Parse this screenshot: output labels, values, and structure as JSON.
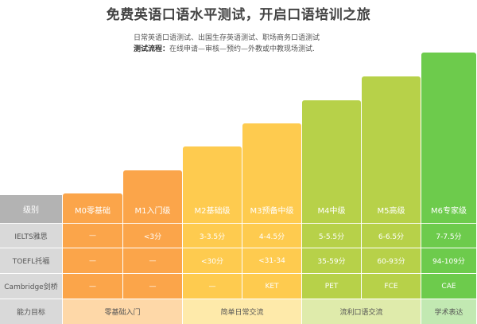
{
  "title": "免费英语口语水平测试，开启口语培训之旅",
  "subtitle1": "日常英语口语测试、出国生存英语测试、职场商务口语测试",
  "subtitle2_label": "测试流程：",
  "subtitle2_text": "在线申请—审核—预约—外教或中教现场测试.",
  "header_label": "级别",
  "levels": [
    {
      "name": "M0零基础",
      "color": "#fba54a",
      "cell_color": "#fed8a8"
    },
    {
      "name": "M1入门级",
      "color": "#fba54a",
      "cell_color": "#fed8a8"
    },
    {
      "name": "M2基础级",
      "color": "#fecb4f",
      "cell_color": "#feeaaa"
    },
    {
      "name": "M3预备中级",
      "color": "#fecb4f",
      "cell_color": "#feeaaa"
    },
    {
      "name": "M4中级",
      "color": "#b7d149",
      "cell_color": "#dfebab"
    },
    {
      "name": "M5高级",
      "color": "#b7d149",
      "cell_color": "#dfebab"
    },
    {
      "name": "M6专家级",
      "color": "#6dcb4c",
      "cell_color": "#c2e9b2"
    }
  ],
  "rows": [
    {
      "label": "IELTS雅思",
      "cells": [
        "—",
        "<3分",
        "3-3.5分",
        "4-4.5分",
        "5-5.5分",
        "6-6.5分",
        "7-7.5分"
      ]
    },
    {
      "label": "TOEFL托福",
      "cells": [
        "—",
        "—",
        "<30分",
        "<31-34",
        "35-59分",
        "60-93分",
        "94-109分"
      ]
    },
    {
      "label": "Cambridge剑桥",
      "cells": [
        "—",
        "—",
        "—",
        "KET",
        "PET",
        "FCE",
        "CAE"
      ]
    }
  ],
  "ability": {
    "label": "能力目标",
    "groups": [
      {
        "text": "零基础入门",
        "span": 2
      },
      {
        "text": "简单日常交流",
        "span": 2
      },
      {
        "text": "流利口语交流",
        "span": 2
      },
      {
        "text": "学术表达",
        "span": 1
      }
    ]
  }
}
